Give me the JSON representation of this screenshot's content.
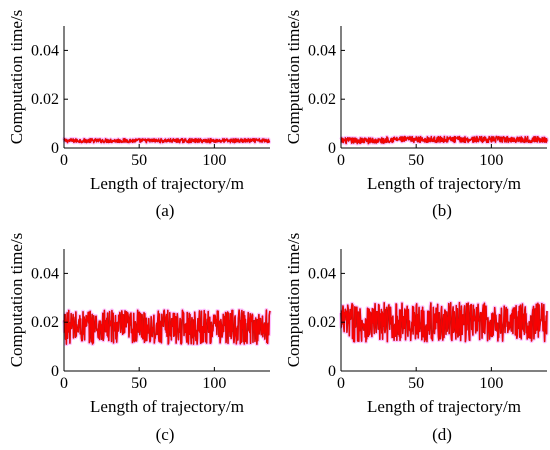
{
  "colors": {
    "series": "#ff0000",
    "series_dark": "#a31a1a",
    "halo": "#ff8cff",
    "axis": "#000000"
  },
  "chart_data": [
    {
      "type": "line",
      "caption": "(a)",
      "xlabel": "Length of trajectory/m",
      "ylabel": "Computation time/s",
      "xlim": [
        0,
        137
      ],
      "ylim": [
        0,
        0.05
      ],
      "xticks": [
        "0",
        "50",
        "100"
      ],
      "yticks": [
        "0",
        "0.02",
        "0.04"
      ],
      "x_range": [
        0,
        137
      ],
      "baseline": 0.003,
      "spread": 0.0008,
      "grid": false,
      "legend": "none"
    },
    {
      "type": "line",
      "caption": "(b)",
      "xlabel": "Length of trajectory/m",
      "ylabel": "Computation time/s",
      "xlim": [
        0,
        137
      ],
      "ylim": [
        0,
        0.05
      ],
      "xticks": [
        "0",
        "50",
        "100"
      ],
      "yticks": [
        "0",
        "0.02",
        "0.04"
      ],
      "x_range": [
        0,
        137
      ],
      "baseline": 0.003,
      "spread": 0.0012,
      "step_at": 30,
      "baseline_after": 0.0035,
      "grid": false,
      "legend": "none"
    },
    {
      "type": "line",
      "caption": "(c)",
      "xlabel": "Length of trajectory/m",
      "ylabel": "Computation time/s",
      "xlim": [
        0,
        137
      ],
      "ylim": [
        0,
        0.05
      ],
      "xticks": [
        "0",
        "50",
        "100"
      ],
      "yticks": [
        "0",
        "0.02",
        "0.04"
      ],
      "x_range": [
        0,
        137
      ],
      "baseline": 0.018,
      "spread": 0.007,
      "min": 0.006,
      "max": 0.031,
      "grid": false,
      "legend": "none"
    },
    {
      "type": "line",
      "caption": "(d)",
      "xlabel": "Length of trajectory/m",
      "ylabel": "Computation time/s",
      "xlim": [
        0,
        137
      ],
      "ylim": [
        0,
        0.05
      ],
      "xticks": [
        "0",
        "50",
        "100"
      ],
      "yticks": [
        "0",
        "0.02",
        "0.04"
      ],
      "x_range": [
        0,
        137
      ],
      "baseline": 0.02,
      "spread": 0.008,
      "min": 0.005,
      "max": 0.034,
      "grid": false,
      "legend": "none"
    }
  ]
}
